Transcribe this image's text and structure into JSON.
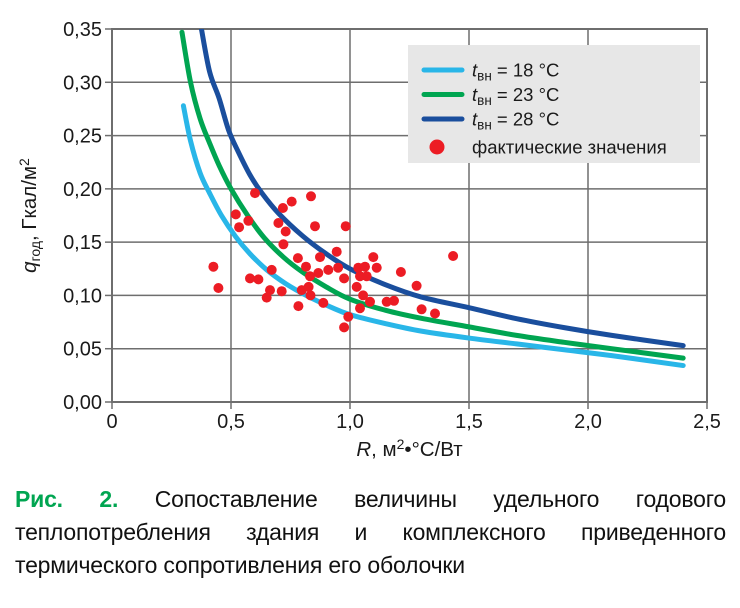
{
  "colors": {
    "curve_18": "#29b6e8",
    "curve_23": "#00a551",
    "curve_28": "#1a4e9d",
    "scatter": "#ec1c24",
    "grid": "#6e6e6e",
    "legend_bg": "#e7e7e7",
    "text": "#1a1a1a",
    "caption_label": "#00a551"
  },
  "chart_data": {
    "type": "scatter",
    "grid": true,
    "legend_position": "top-right",
    "xlim": [
      0,
      2.5
    ],
    "ylim": [
      0,
      0.35
    ],
    "x_ticks": {
      "values": [
        0,
        0.5,
        1.0,
        1.5,
        2.0,
        2.5
      ],
      "labels": [
        "0",
        "0,5",
        "1,0",
        "1,5",
        "2,0",
        "2,5"
      ]
    },
    "y_ticks": {
      "values": [
        0,
        0.05,
        0.1,
        0.15,
        0.2,
        0.25,
        0.3,
        0.35
      ],
      "labels": [
        "0,00",
        "0,05",
        "0,10",
        "0,15",
        "0,20",
        "0,25",
        "0,30",
        "0,35"
      ]
    },
    "xlabel": {
      "symbol": "R",
      "unit_pre": ", м",
      "unit_sup": "2",
      "unit_post": "•°С/Вт"
    },
    "ylabel": {
      "symbol": "q",
      "symbol_sub": "год",
      "unit_pre": ", Гкал/м",
      "unit_sup": "2"
    },
    "series": [
      {
        "name": "tвн = 18 °С",
        "type": "line",
        "color": "#29b6e8",
        "points": [
          [
            0.3,
            0.278
          ],
          [
            0.33,
            0.245
          ],
          [
            0.37,
            0.215
          ],
          [
            0.41,
            0.196
          ],
          [
            0.46,
            0.175
          ],
          [
            0.52,
            0.155
          ],
          [
            0.58,
            0.139
          ],
          [
            0.65,
            0.124
          ],
          [
            0.73,
            0.111
          ],
          [
            0.82,
            0.0995
          ],
          [
            0.92,
            0.089
          ],
          [
            1.0,
            0.082
          ],
          [
            1.15,
            0.0735
          ],
          [
            1.3,
            0.0665
          ],
          [
            1.5,
            0.06
          ],
          [
            1.7,
            0.0545
          ],
          [
            1.9,
            0.049
          ],
          [
            2.1,
            0.0435
          ],
          [
            2.4,
            0.0342
          ]
        ]
      },
      {
        "name": "tвн = 23 °С",
        "type": "line",
        "color": "#00a551",
        "points": [
          [
            0.294,
            0.347
          ],
          [
            0.33,
            0.3
          ],
          [
            0.37,
            0.266
          ],
          [
            0.41,
            0.243
          ],
          [
            0.45,
            0.222
          ],
          [
            0.5,
            0.2
          ],
          [
            0.57,
            0.175
          ],
          [
            0.64,
            0.154
          ],
          [
            0.72,
            0.136
          ],
          [
            0.8,
            0.122
          ],
          [
            0.9,
            0.108
          ],
          [
            1.0,
            0.0965
          ],
          [
            1.15,
            0.086
          ],
          [
            1.3,
            0.0785
          ],
          [
            1.5,
            0.0705
          ],
          [
            1.7,
            0.0625
          ],
          [
            1.9,
            0.056
          ],
          [
            2.1,
            0.05
          ],
          [
            2.4,
            0.0412
          ]
        ]
      },
      {
        "name": "tвн = 28 °С",
        "type": "line",
        "color": "#1a4e9d",
        "points": [
          [
            0.375,
            0.351
          ],
          [
            0.41,
            0.31
          ],
          [
            0.45,
            0.285
          ],
          [
            0.49,
            0.255
          ],
          [
            0.53,
            0.235
          ],
          [
            0.58,
            0.213
          ],
          [
            0.63,
            0.196
          ],
          [
            0.7,
            0.177
          ],
          [
            0.8,
            0.156
          ],
          [
            0.9,
            0.139
          ],
          [
            1.0,
            0.125
          ],
          [
            1.15,
            0.11
          ],
          [
            1.3,
            0.0985
          ],
          [
            1.5,
            0.0885
          ],
          [
            1.7,
            0.0782
          ],
          [
            1.9,
            0.0698
          ],
          [
            2.1,
            0.0625
          ],
          [
            2.4,
            0.0529
          ]
        ]
      },
      {
        "name": "фактические значения",
        "type": "scatter",
        "color": "#ec1c24",
        "points": [
          [
            0.601,
            0.196
          ],
          [
            0.718,
            0.182
          ],
          [
            0.755,
            0.188
          ],
          [
            0.836,
            0.193
          ],
          [
            0.52,
            0.176
          ],
          [
            0.573,
            0.17
          ],
          [
            0.534,
            0.164
          ],
          [
            0.699,
            0.168
          ],
          [
            0.73,
            0.16
          ],
          [
            0.853,
            0.165
          ],
          [
            0.982,
            0.165
          ],
          [
            0.72,
            0.148
          ],
          [
            0.874,
            0.136
          ],
          [
            0.944,
            0.141
          ],
          [
            1.098,
            0.136
          ],
          [
            1.433,
            0.137
          ],
          [
            0.426,
            0.127
          ],
          [
            0.447,
            0.107
          ],
          [
            0.58,
            0.116
          ],
          [
            0.615,
            0.115
          ],
          [
            0.671,
            0.124
          ],
          [
            0.781,
            0.135
          ],
          [
            0.815,
            0.127
          ],
          [
            0.867,
            0.121
          ],
          [
            0.909,
            0.124
          ],
          [
            0.832,
            0.118
          ],
          [
            0.95,
            0.126
          ],
          [
            0.975,
            0.116
          ],
          [
            1.035,
            0.126
          ],
          [
            1.063,
            0.127
          ],
          [
            1.042,
            0.118
          ],
          [
            1.07,
            0.118
          ],
          [
            1.112,
            0.126
          ],
          [
            1.214,
            0.122
          ],
          [
            1.28,
            0.109
          ],
          [
            0.664,
            0.105
          ],
          [
            0.713,
            0.104
          ],
          [
            0.65,
            0.098
          ],
          [
            0.797,
            0.105
          ],
          [
            0.826,
            0.108
          ],
          [
            0.834,
            0.1
          ],
          [
            0.783,
            0.09
          ],
          [
            0.888,
            0.093
          ],
          [
            1.028,
            0.108
          ],
          [
            1.055,
            0.1
          ],
          [
            1.084,
            0.094
          ],
          [
            1.042,
            0.088
          ],
          [
            1.154,
            0.094
          ],
          [
            1.185,
            0.095
          ],
          [
            1.301,
            0.087
          ],
          [
            1.357,
            0.083
          ],
          [
            0.993,
            0.08
          ],
          [
            0.975,
            0.07
          ]
        ]
      }
    ],
    "legend": [
      {
        "swatch": "line",
        "color": "#29b6e8",
        "symbol": "t",
        "symbol_sub": "вн",
        "text": " = 18 °С"
      },
      {
        "swatch": "line",
        "color": "#00a551",
        "symbol": "t",
        "symbol_sub": "вн",
        "text": " = 23 °С"
      },
      {
        "swatch": "line",
        "color": "#1a4e9d",
        "symbol": "t",
        "symbol_sub": "вн",
        "text": " = 28 °С"
      },
      {
        "swatch": "dot",
        "color": "#ec1c24",
        "text": "фактические значения"
      }
    ]
  },
  "caption": {
    "label": "Рис. 2.",
    "text": " Сопоставление величины удельного годового теплопотребления здания и комплексного приведенного термического сопротивления его оболочки"
  }
}
